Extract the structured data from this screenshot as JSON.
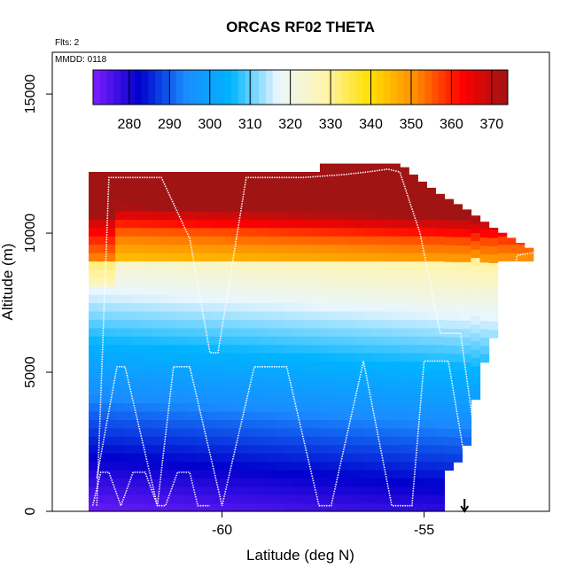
{
  "chart_data": {
    "type": "heatmap",
    "title": "ORCAS RF02 THETA",
    "xlabel": "Latitude (deg N)",
    "ylabel": "Altitude (m)",
    "xlim": [
      -64.2,
      -51.9
    ],
    "ylim": [
      0,
      16500
    ],
    "x_ticks": [
      -60,
      -55
    ],
    "x_tick_labels": [
      "-60",
      "-55"
    ],
    "y_ticks": [
      0,
      5000,
      10000,
      15000
    ],
    "y_tick_labels": [
      "0",
      "5000",
      "10000",
      "15000"
    ],
    "annotations": [
      "Flts: 2",
      "MMDD: 0118"
    ],
    "colorbar": {
      "range": [
        271,
        374
      ],
      "ticks": [
        280,
        290,
        300,
        310,
        320,
        330,
        340,
        350,
        360,
        370
      ],
      "tick_labels": [
        "280",
        "290",
        "300",
        "310",
        "320",
        "330",
        "340",
        "350",
        "360",
        "370"
      ],
      "position": "top",
      "colors": [
        "#7f1fff",
        "#0000cc",
        "#1a8cff",
        "#00b4ff",
        "#e8f6ff",
        "#fff5b0",
        "#ffe000",
        "#ff8c00",
        "#ff0000",
        "#a01414"
      ]
    },
    "data_extent": {
      "lat_min": -63.3,
      "lat_max": -52.2,
      "alt_max_by_lat": [
        [
          -63.3,
          12200
        ],
        [
          -57.6,
          12200
        ],
        [
          -57.6,
          12500
        ],
        [
          -55.6,
          12500
        ],
        [
          -55.1,
          11900
        ],
        [
          -54.6,
          11400
        ],
        [
          -54.0,
          10900
        ],
        [
          -53.3,
          10200
        ],
        [
          -52.2,
          9300
        ],
        [
          -52.2,
          9100
        ],
        [
          -53.2,
          8700
        ],
        [
          -53.2,
          6600
        ],
        [
          -53.6,
          5000
        ],
        [
          -54.0,
          2000
        ],
        [
          -54.6,
          1200
        ],
        [
          -54.6,
          0
        ]
      ]
    },
    "flight_track": [
      [
        -63.1,
        200
      ],
      [
        -62.8,
        12000
      ],
      [
        -61.5,
        12000
      ],
      [
        -60.8,
        9800
      ],
      [
        -60.3,
        5700
      ],
      [
        -60.1,
        5700
      ],
      [
        -59.4,
        12000
      ],
      [
        -58.8,
        12000
      ],
      [
        -58.0,
        12000
      ],
      [
        -57.0,
        12100
      ],
      [
        -56.4,
        12200
      ],
      [
        -55.9,
        12300
      ],
      [
        -55.6,
        12200
      ],
      [
        -55.1,
        10000
      ],
      [
        -54.6,
        6400
      ],
      [
        -54.1,
        6400
      ],
      [
        -53.7,
        2200
      ],
      [
        -53.2,
        4000
      ],
      [
        -52.7,
        9200
      ],
      [
        -52.3,
        9300
      ]
    ],
    "flight_track_low": [
      [
        -63.1,
        1200
      ],
      [
        -62.6,
        5200
      ],
      [
        -62.4,
        5200
      ],
      [
        -61.6,
        200
      ],
      [
        -61.2,
        5200
      ],
      [
        -60.8,
        5200
      ],
      [
        -60.0,
        200
      ],
      [
        -59.2,
        5200
      ],
      [
        -58.4,
        5200
      ],
      [
        -57.6,
        200
      ],
      [
        -57.3,
        200
      ],
      [
        -56.5,
        5400
      ],
      [
        -55.8,
        200
      ],
      [
        -55.3,
        200
      ],
      [
        -55.0,
        5400
      ],
      [
        -54.4,
        5400
      ],
      [
        -53.8,
        200
      ]
    ],
    "flight_track_short": [
      [
        -63.2,
        200
      ],
      [
        -63.0,
        1400
      ],
      [
        -62.8,
        1400
      ],
      [
        -62.5,
        200
      ],
      [
        -62.2,
        1400
      ],
      [
        -61.9,
        1400
      ],
      [
        -61.6,
        200
      ],
      [
        -61.4,
        200
      ],
      [
        -61.1,
        1400
      ],
      [
        -60.8,
        1400
      ],
      [
        -60.6,
        200
      ],
      [
        -60.3,
        200
      ]
    ],
    "track_end_arrow": [
      -54.0,
      0
    ]
  }
}
